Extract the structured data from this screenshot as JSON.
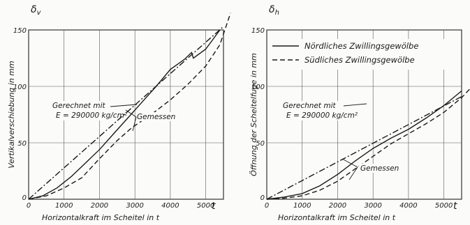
{
  "chart_data": [
    {
      "type": "line",
      "ylabel_symbol": "δv",
      "xlabel": "Horizontalkraft im Scheitel in",
      "x_unit": "t",
      "ylabel": "Vertikalverschiebung in mm",
      "xlim": [
        0,
        5500
      ],
      "ylim": [
        0,
        150
      ],
      "x_ticks": [
        0,
        1000,
        2000,
        3000,
        4000,
        5000
      ],
      "x_tick_labels": [
        "0",
        "1000",
        "2000",
        "3000",
        "4000",
        "5000"
      ],
      "y_ticks": [
        0,
        50,
        100,
        150
      ],
      "y_tick_labels": [
        "0",
        "50",
        "100",
        "150"
      ],
      "grid": true,
      "annotations": {
        "calc_line1": "Gerechnet mit",
        "calc_line2": "E = 290000 kg/cm²",
        "measured": "Gemessen"
      },
      "series": [
        {
          "style": "solid",
          "x": [
            0,
            400,
            800,
            1200,
            1600,
            2000,
            2400,
            2800,
            3200,
            3600,
            4000,
            4400,
            4600,
            4650,
            5000,
            5400
          ],
          "y": [
            0,
            3,
            10,
            20,
            32,
            44,
            58,
            72,
            86,
            100,
            115,
            124,
            130,
            125,
            133,
            150
          ]
        },
        {
          "style": "dashed",
          "x": [
            0,
            500,
            1000,
            1500,
            2000,
            2500,
            2900,
            3500,
            4000,
            4500,
            5000,
            5400,
            5700
          ],
          "y": [
            0,
            3,
            10,
            19,
            36,
            52,
            63,
            76,
            88,
            102,
            118,
            137,
            165
          ]
        },
        {
          "style": "dashdot",
          "x": [
            0,
            5500
          ],
          "y": [
            0,
            153
          ]
        }
      ]
    },
    {
      "type": "line",
      "ylabel_symbol": "δh",
      "xlabel": "Horizontalkraft im Scheitel in",
      "x_unit": "t",
      "ylabel": "Öffnung der Scheitelfuge in mm",
      "xlim": [
        0,
        5500
      ],
      "ylim": [
        0,
        150
      ],
      "x_ticks": [
        0,
        1000,
        2000,
        3000,
        4000,
        5000
      ],
      "x_tick_labels": [
        "0",
        "1000",
        "2000",
        "3000",
        "4000",
        "5000"
      ],
      "y_ticks": [
        0,
        50,
        100,
        150
      ],
      "y_tick_labels": [
        "0",
        "50",
        "100",
        "150"
      ],
      "grid": true,
      "legend": {
        "placement": "top-right",
        "entries": [
          {
            "label": "Nördliches Zwillingsgewölbe",
            "style": "solid"
          },
          {
            "label": "Südliches Zwillingsgewölbe",
            "style": "dashed"
          }
        ]
      },
      "annotations": {
        "calc_line1": "Gerechnet mit",
        "calc_line2": "E = 290000 kg/cm²",
        "measured": "Gemessen"
      },
      "series": [
        {
          "name": "Nördliches Zwillingsgewölbe",
          "style": "solid",
          "x": [
            0,
            500,
            1000,
            1500,
            2000,
            2500,
            3000,
            3500,
            4000,
            4500,
            5000,
            5500
          ],
          "y": [
            0,
            2,
            5,
            12,
            22,
            34,
            45,
            54,
            62,
            72,
            83,
            96
          ]
        },
        {
          "name": "Südliches Zwillingsgewölbe",
          "style": "dashed",
          "x": [
            0,
            500,
            1000,
            1500,
            2000,
            2500,
            3000,
            3500,
            4000,
            4500,
            5000,
            5500,
            5800
          ],
          "y": [
            0,
            1,
            3,
            8,
            16,
            27,
            38,
            49,
            58,
            67,
            77,
            90,
            100
          ]
        },
        {
          "style": "dashdot",
          "x": [
            0,
            5500
          ],
          "y": [
            0,
            91
          ]
        }
      ]
    }
  ]
}
